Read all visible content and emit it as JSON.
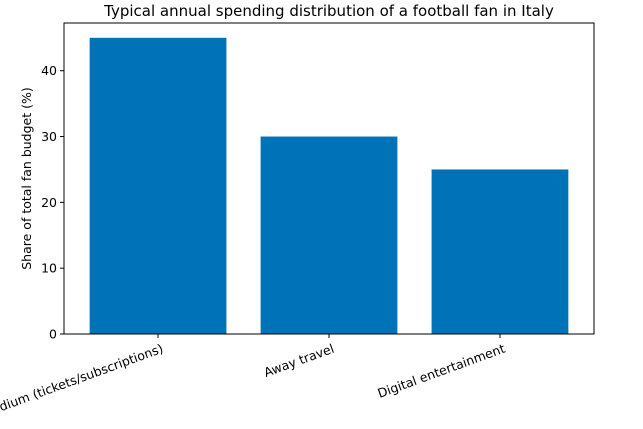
{
  "chart_data": {
    "type": "bar",
    "title": "Typical annual spending distribution of a football fan in Italy",
    "xlabel": "",
    "ylabel": "Share of total fan budget (%)",
    "categories": [
      "Stadium (tickets/subscriptions)",
      "Away travel",
      "Digital entertainment"
    ],
    "values": [
      45,
      30,
      25
    ],
    "ylim": [
      0,
      47.25
    ],
    "yticks": [
      0,
      10,
      20,
      30,
      40
    ],
    "ytick_labels": [
      "0",
      "10",
      "20",
      "30",
      "40"
    ],
    "grid": false,
    "legend": "none",
    "bar_color": "#0072b8",
    "x_tick_rotation_deg": -20
  }
}
